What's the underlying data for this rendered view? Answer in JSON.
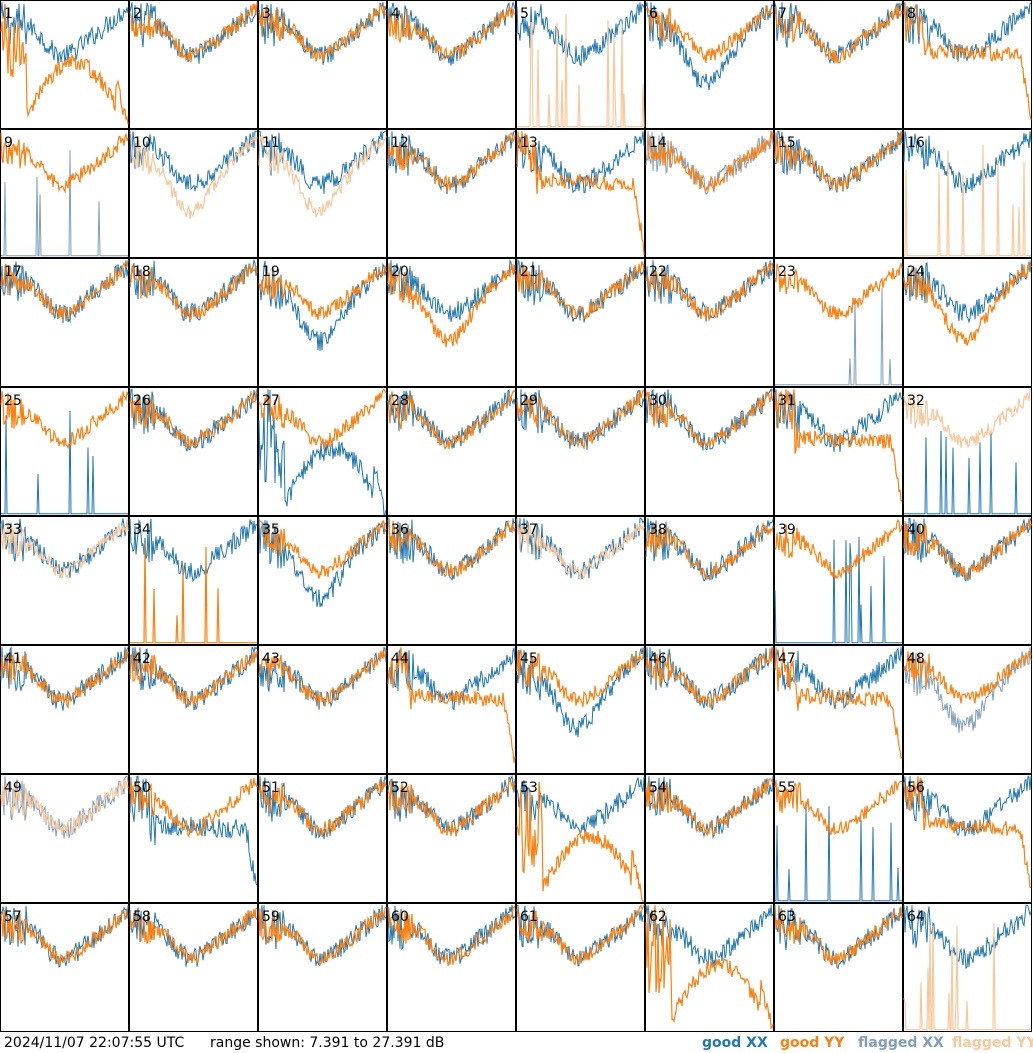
{
  "footer": {
    "timestamp": "2024/11/07 22:07:55 UTC",
    "range_text": "range shown: 7.391 to 27.391 dB",
    "legend": {
      "good_xx": "good XX",
      "good_yy": "good YY",
      "flagged_xx": "flagged XX",
      "flagged_yy": "flagged YY"
    }
  },
  "colors": {
    "good_xx": "#1f77b4",
    "good_yy": "#ff7f0e",
    "flagged_xx": "#7f9fba",
    "flagged_yy": "#f8c89c",
    "border": "#000000"
  },
  "chart_data": {
    "type": "line",
    "layout": "small-multiples 8x8",
    "ylim": [
      7.391,
      27.391
    ],
    "yunit": "dB",
    "panels": [
      {
        "label": "1",
        "xx": "good",
        "yy": "good",
        "pxx": "normal",
        "pyy": "dip"
      },
      {
        "label": "2",
        "xx": "good",
        "yy": "good",
        "pxx": "normal",
        "pyy": "normal"
      },
      {
        "label": "3",
        "xx": "good",
        "yy": "good",
        "pxx": "normal",
        "pyy": "normal"
      },
      {
        "label": "4",
        "xx": "good",
        "yy": "good",
        "pxx": "normal",
        "pyy": "normal"
      },
      {
        "label": "5",
        "xx": "good",
        "yy": "flagged",
        "pxx": "normal",
        "pyy": "spikes"
      },
      {
        "label": "6",
        "xx": "good",
        "yy": "good",
        "pxx": "low",
        "pyy": "normal"
      },
      {
        "label": "7",
        "xx": "good",
        "yy": "good",
        "pxx": "normal",
        "pyy": "normal"
      },
      {
        "label": "8",
        "xx": "good",
        "yy": "good",
        "pxx": "normal",
        "pyy": "plateau"
      },
      {
        "label": "9",
        "xx": "flagged",
        "yy": "good",
        "pxx": "spikes",
        "pyy": "normal"
      },
      {
        "label": "10",
        "xx": "good",
        "yy": "flagged",
        "pxx": "normal",
        "pyy": "low"
      },
      {
        "label": "11",
        "xx": "good",
        "yy": "flagged",
        "pxx": "normal",
        "pyy": "low"
      },
      {
        "label": "12",
        "xx": "good",
        "yy": "good",
        "pxx": "normal",
        "pyy": "normal"
      },
      {
        "label": "13",
        "xx": "good",
        "yy": "good",
        "pxx": "normal",
        "pyy": "plateau"
      },
      {
        "label": "14",
        "xx": "flagged",
        "yy": "good",
        "pxx": "normal",
        "pyy": "normal"
      },
      {
        "label": "15",
        "xx": "good",
        "yy": "good",
        "pxx": "normal",
        "pyy": "normal"
      },
      {
        "label": "16",
        "xx": "good",
        "yy": "flagged",
        "pxx": "normal",
        "pyy": "spikes"
      },
      {
        "label": "17",
        "xx": "good",
        "yy": "good",
        "pxx": "normal",
        "pyy": "normal"
      },
      {
        "label": "18",
        "xx": "good",
        "yy": "good",
        "pxx": "normal",
        "pyy": "normal"
      },
      {
        "label": "19",
        "xx": "good",
        "yy": "good",
        "pxx": "low",
        "pyy": "normal"
      },
      {
        "label": "20",
        "xx": "good",
        "yy": "good",
        "pxx": "normal",
        "pyy": "low"
      },
      {
        "label": "21",
        "xx": "good",
        "yy": "good",
        "pxx": "normal",
        "pyy": "normal"
      },
      {
        "label": "22",
        "xx": "good",
        "yy": "good",
        "pxx": "normal",
        "pyy": "normal"
      },
      {
        "label": "23",
        "xx": "flagged",
        "yy": "good",
        "pxx": "spikes",
        "pyy": "normal"
      },
      {
        "label": "24",
        "xx": "good",
        "yy": "good",
        "pxx": "normal",
        "pyy": "low"
      },
      {
        "label": "25",
        "xx": "good",
        "yy": "good",
        "pxx": "spikes",
        "pyy": "normal"
      },
      {
        "label": "26",
        "xx": "good",
        "yy": "good",
        "pxx": "normal",
        "pyy": "normal"
      },
      {
        "label": "27",
        "xx": "good",
        "yy": "good",
        "pxx": "dip",
        "pyy": "normal"
      },
      {
        "label": "28",
        "xx": "good",
        "yy": "good",
        "pxx": "normal",
        "pyy": "normal"
      },
      {
        "label": "29",
        "xx": "good",
        "yy": "good",
        "pxx": "normal",
        "pyy": "normal"
      },
      {
        "label": "30",
        "xx": "good",
        "yy": "good",
        "pxx": "normal",
        "pyy": "normal"
      },
      {
        "label": "31",
        "xx": "good",
        "yy": "good",
        "pxx": "normal",
        "pyy": "plateau"
      },
      {
        "label": "32",
        "xx": "good",
        "yy": "flagged",
        "pxx": "spikes",
        "pyy": "normal"
      },
      {
        "label": "33",
        "xx": "good",
        "yy": "flagged",
        "pxx": "normal",
        "pyy": "normal"
      },
      {
        "label": "34",
        "xx": "good",
        "yy": "good",
        "pxx": "normal",
        "pyy": "spikes"
      },
      {
        "label": "35",
        "xx": "good",
        "yy": "good",
        "pxx": "low",
        "pyy": "normal"
      },
      {
        "label": "36",
        "xx": "good",
        "yy": "good",
        "pxx": "normal",
        "pyy": "normal"
      },
      {
        "label": "37",
        "xx": "good",
        "yy": "flagged",
        "pxx": "normal",
        "pyy": "normal"
      },
      {
        "label": "38",
        "xx": "good",
        "yy": "good",
        "pxx": "normal",
        "pyy": "normal"
      },
      {
        "label": "39",
        "xx": "good",
        "yy": "good",
        "pxx": "spikes",
        "pyy": "normal"
      },
      {
        "label": "40",
        "xx": "good",
        "yy": "good",
        "pxx": "normal",
        "pyy": "normal"
      },
      {
        "label": "41",
        "xx": "good",
        "yy": "good",
        "pxx": "normal",
        "pyy": "normal"
      },
      {
        "label": "42",
        "xx": "good",
        "yy": "good",
        "pxx": "normal",
        "pyy": "normal"
      },
      {
        "label": "43",
        "xx": "good",
        "yy": "good",
        "pxx": "normal",
        "pyy": "normal"
      },
      {
        "label": "44",
        "xx": "good",
        "yy": "good",
        "pxx": "normal",
        "pyy": "plateau"
      },
      {
        "label": "45",
        "xx": "good",
        "yy": "good",
        "pxx": "low",
        "pyy": "normal"
      },
      {
        "label": "46",
        "xx": "good",
        "yy": "good",
        "pxx": "normal",
        "pyy": "normal"
      },
      {
        "label": "47",
        "xx": "good",
        "yy": "good",
        "pxx": "normal",
        "pyy": "plateau"
      },
      {
        "label": "48",
        "xx": "flagged",
        "yy": "good",
        "pxx": "low",
        "pyy": "normal"
      },
      {
        "label": "49",
        "xx": "flagged",
        "yy": "flagged",
        "pxx": "normal",
        "pyy": "normal"
      },
      {
        "label": "50",
        "xx": "good",
        "yy": "good",
        "pxx": "plateau",
        "pyy": "normal"
      },
      {
        "label": "51",
        "xx": "good",
        "yy": "good",
        "pxx": "normal",
        "pyy": "normal"
      },
      {
        "label": "52",
        "xx": "good",
        "yy": "good",
        "pxx": "normal",
        "pyy": "normal"
      },
      {
        "label": "53",
        "xx": "good",
        "yy": "good",
        "pxx": "normal",
        "pyy": "dip"
      },
      {
        "label": "54",
        "xx": "good",
        "yy": "good",
        "pxx": "normal",
        "pyy": "normal"
      },
      {
        "label": "55",
        "xx": "good",
        "yy": "good",
        "pxx": "spikes",
        "pyy": "normal"
      },
      {
        "label": "56",
        "xx": "good",
        "yy": "good",
        "pxx": "normal",
        "pyy": "plateau"
      },
      {
        "label": "57",
        "xx": "good",
        "yy": "good",
        "pxx": "normal",
        "pyy": "normal"
      },
      {
        "label": "58",
        "xx": "good",
        "yy": "good",
        "pxx": "normal",
        "pyy": "normal"
      },
      {
        "label": "59",
        "xx": "good",
        "yy": "good",
        "pxx": "normal",
        "pyy": "normal"
      },
      {
        "label": "60",
        "xx": "good",
        "yy": "good",
        "pxx": "normal",
        "pyy": "normal"
      },
      {
        "label": "61",
        "xx": "good",
        "yy": "good",
        "pxx": "normal",
        "pyy": "normal"
      },
      {
        "label": "62",
        "xx": "good",
        "yy": "good",
        "pxx": "normal",
        "pyy": "dip"
      },
      {
        "label": "63",
        "xx": "good",
        "yy": "good",
        "pxx": "normal",
        "pyy": "normal"
      },
      {
        "label": "64",
        "xx": "good",
        "yy": "flagged",
        "pxx": "normal",
        "pyy": "spikes"
      }
    ]
  }
}
